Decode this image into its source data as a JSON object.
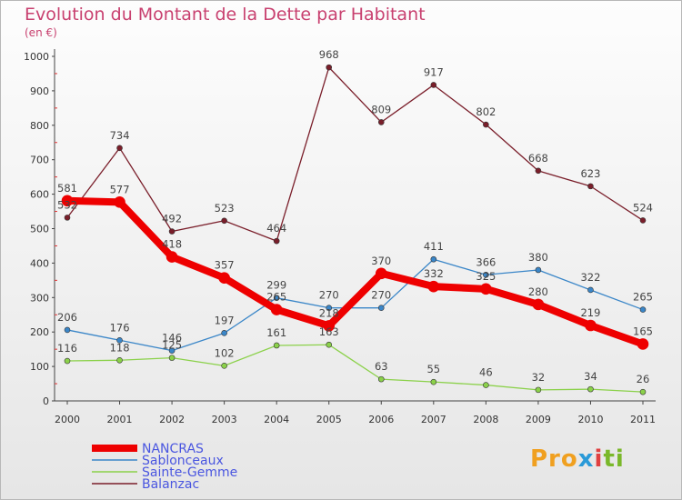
{
  "title": "Evolution du Montant de la Dette par Habitant",
  "unit": "(en €)",
  "logo": {
    "text_parts": [
      "Pro",
      "x",
      "i",
      "ti"
    ],
    "colors": [
      "#f0a020",
      "#2a9ad8",
      "#e04040",
      "#7ab82a"
    ]
  },
  "chart_data": {
    "type": "line",
    "x": [
      "2000",
      "2001",
      "2002",
      "2003",
      "2004",
      "2005",
      "2006",
      "2007",
      "2008",
      "2009",
      "2010",
      "2011"
    ],
    "ylim": [
      0,
      1000
    ],
    "yticks": [
      0,
      100,
      200,
      300,
      400,
      500,
      600,
      700,
      800,
      900,
      1000
    ],
    "grid": false,
    "legend_position": "bottom-left",
    "series": [
      {
        "name": "Balanzac",
        "color": "#7a1e2a",
        "values": [
          532,
          734,
          492,
          523,
          464,
          968,
          809,
          917,
          802,
          668,
          623,
          524
        ]
      },
      {
        "name": "Sablonceaux",
        "color": "#3a86c8",
        "values": [
          206,
          176,
          146,
          197,
          299,
          270,
          270,
          411,
          366,
          380,
          322,
          265
        ]
      },
      {
        "name": "Sainte-Gemme",
        "color": "#8bd14a",
        "values": [
          116,
          118,
          125,
          102,
          161,
          163,
          63,
          55,
          46,
          32,
          34,
          26
        ]
      },
      {
        "name": "NANCRAS",
        "color": "#ee0000",
        "values": [
          581,
          577,
          418,
          357,
          265,
          218,
          370,
          332,
          325,
          280,
          219,
          165
        ]
      }
    ],
    "data_labels": {
      "Balanzac": [
        "532",
        "734",
        "492",
        "523",
        "464",
        "968",
        "809",
        "917",
        "802",
        "668",
        "623",
        "524"
      ],
      "Sablonceaux": [
        "206",
        "176",
        "146",
        "197",
        "299",
        "270",
        "270",
        "411",
        "366",
        "380",
        "322",
        "265"
      ],
      "Sainte-Gemme": [
        "116",
        "118",
        "125",
        "102",
        "161",
        "163",
        "63",
        "55",
        "46",
        "32",
        "34",
        "26"
      ],
      "NANCRAS": [
        "581",
        "577",
        "418",
        "357",
        "265",
        "218",
        "370",
        "332",
        "325",
        "280",
        "219",
        "165"
      ]
    },
    "legend_order": [
      "NANCRAS",
      "Sablonceaux",
      "Sainte-Gemme",
      "Balanzac"
    ]
  }
}
